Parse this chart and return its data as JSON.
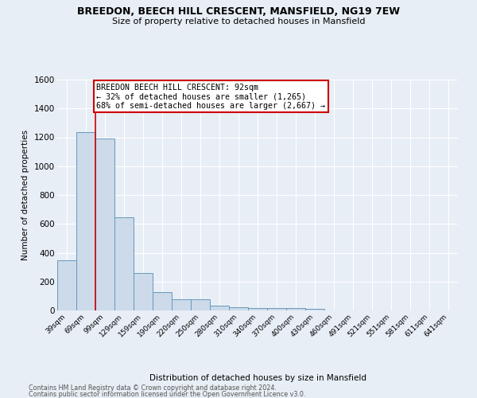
{
  "title1": "BREEDON, BEECH HILL CRESCENT, MANSFIELD, NG19 7EW",
  "title2": "Size of property relative to detached houses in Mansfield",
  "xlabel": "Distribution of detached houses by size in Mansfield",
  "ylabel": "Number of detached properties",
  "categories": [
    "39sqm",
    "69sqm",
    "99sqm",
    "129sqm",
    "159sqm",
    "190sqm",
    "220sqm",
    "250sqm",
    "280sqm",
    "310sqm",
    "340sqm",
    "370sqm",
    "400sqm",
    "430sqm",
    "460sqm",
    "491sqm",
    "521sqm",
    "551sqm",
    "581sqm",
    "611sqm",
    "641sqm"
  ],
  "values": [
    350,
    1235,
    1190,
    645,
    260,
    125,
    75,
    75,
    35,
    22,
    18,
    15,
    18,
    10,
    0,
    0,
    0,
    0,
    0,
    0,
    0
  ],
  "bar_color": "#ccdaea",
  "bar_edge_color": "#6699bb",
  "red_line_x": 1.5,
  "annotation_title": "BREEDON BEECH HILL CRESCENT: 92sqm",
  "annotation_line1": "← 32% of detached houses are smaller (1,265)",
  "annotation_line2": "68% of semi-detached houses are larger (2,667) →",
  "annotation_box_facecolor": "#ffffff",
  "annotation_box_edgecolor": "#cc0000",
  "ylim": [
    0,
    1600
  ],
  "yticks": [
    0,
    200,
    400,
    600,
    800,
    1000,
    1200,
    1400,
    1600
  ],
  "footer1": "Contains HM Land Registry data © Crown copyright and database right 2024.",
  "footer2": "Contains public sector information licensed under the Open Government Licence v3.0.",
  "bg_color": "#e8eef5",
  "grid_color": "#ffffff",
  "spine_color": "#cccccc"
}
